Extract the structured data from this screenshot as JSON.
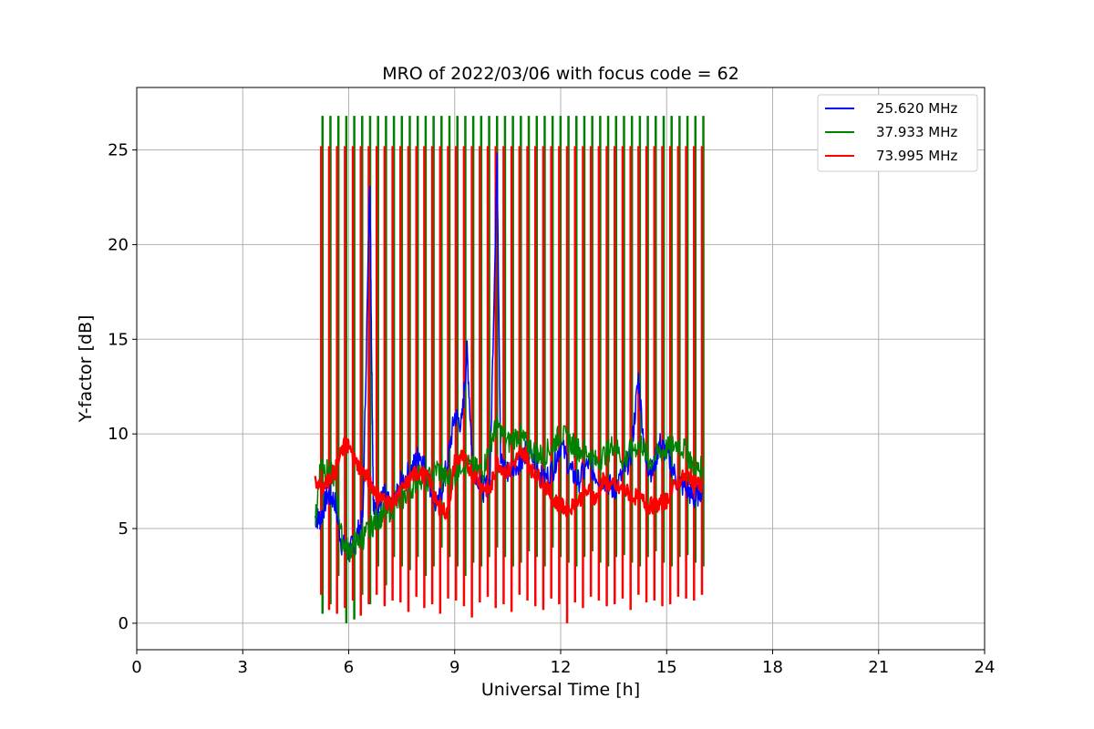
{
  "chart_data": {
    "type": "line",
    "title": "MRO of 2022/03/06 with focus code = 62",
    "xlabel": "Universal Time [h]",
    "ylabel": "Y-factor [dB]",
    "xlim": [
      0,
      24
    ],
    "ylim": [
      -1.4,
      28.3
    ],
    "x_ticks": [
      0,
      3,
      6,
      9,
      12,
      15,
      18,
      21,
      24
    ],
    "x_tick_labels": [
      "0",
      "3",
      "6",
      "9",
      "12",
      "15",
      "18",
      "21",
      "24"
    ],
    "y_ticks": [
      0,
      5,
      10,
      15,
      20,
      25
    ],
    "y_tick_labels": [
      "0",
      "5",
      "10",
      "15",
      "20",
      "25"
    ],
    "grid": true,
    "legend_position": "top-right",
    "series": [
      {
        "name": "25.620 MHz",
        "color": "#0000ff",
        "x": [
          5.05,
          5.2,
          5.4,
          5.6,
          5.8,
          6.0,
          6.2,
          6.4,
          6.6,
          6.65,
          6.7,
          6.8,
          7.0,
          7.2,
          7.5,
          7.8,
          8.0,
          8.2,
          8.5,
          8.8,
          9.0,
          9.2,
          9.35,
          9.5,
          9.8,
          10.0,
          10.2,
          10.3,
          10.5,
          10.8,
          11.0,
          11.3,
          11.5,
          11.8,
          12.0,
          12.3,
          12.5,
          12.8,
          13.0,
          13.3,
          13.5,
          13.8,
          14.0,
          14.2,
          14.4,
          14.6,
          14.8,
          15.0,
          15.3,
          15.6,
          15.8,
          16.0
        ],
        "y": [
          5.6,
          5.5,
          6.8,
          6.5,
          4.2,
          3.7,
          4.5,
          5.5,
          23.5,
          14.0,
          6.0,
          5.8,
          6.8,
          6.0,
          7.5,
          8.2,
          9.0,
          8.0,
          6.0,
          8.5,
          11.0,
          10.5,
          14.5,
          8.5,
          7.0,
          7.5,
          24.8,
          8.5,
          8.0,
          8.5,
          9.0,
          8.5,
          7.5,
          8.2,
          9.5,
          8.0,
          7.5,
          8.5,
          7.8,
          7.5,
          7.0,
          8.0,
          9.0,
          13.0,
          8.5,
          8.0,
          9.5,
          9.0,
          7.5,
          7.0,
          6.5,
          7.2
        ]
      },
      {
        "name": "37.933 MHz",
        "color": "#008000",
        "x": [
          5.05,
          5.2,
          5.4,
          5.6,
          5.8,
          6.0,
          6.2,
          6.4,
          6.6,
          6.8,
          7.0,
          7.2,
          7.5,
          7.8,
          8.0,
          8.2,
          8.5,
          8.8,
          9.0,
          9.2,
          9.5,
          9.8,
          10.0,
          10.2,
          10.5,
          10.8,
          11.0,
          11.3,
          11.5,
          11.8,
          12.0,
          12.3,
          12.5,
          12.8,
          13.0,
          13.3,
          13.5,
          13.8,
          14.0,
          14.3,
          14.5,
          14.8,
          15.0,
          15.3,
          15.6,
          15.8,
          16.0
        ],
        "y": [
          5.2,
          8.5,
          8.0,
          7.8,
          4.5,
          3.8,
          4.2,
          4.5,
          5.0,
          5.5,
          5.8,
          6.0,
          6.5,
          7.2,
          7.8,
          7.5,
          8.2,
          7.5,
          7.8,
          8.5,
          8.2,
          8.0,
          9.5,
          10.5,
          9.5,
          10.0,
          9.5,
          9.0,
          8.8,
          9.5,
          10.0,
          9.5,
          9.2,
          9.0,
          8.5,
          9.0,
          9.5,
          8.5,
          9.2,
          9.5,
          8.5,
          9.0,
          9.2,
          9.5,
          9.0,
          8.0,
          8.2
        ]
      },
      {
        "name": "73.995 MHz",
        "color": "#ff0000",
        "x": [
          5.05,
          5.3,
          5.6,
          5.9,
          6.0,
          6.2,
          6.4,
          6.6,
          6.8,
          7.0,
          7.2,
          7.5,
          7.8,
          8.0,
          8.3,
          8.5,
          8.8,
          9.0,
          9.2,
          9.5,
          9.8,
          10.0,
          10.2,
          10.5,
          10.8,
          11.0,
          11.2,
          11.5,
          11.8,
          12.0,
          12.2,
          12.5,
          12.8,
          13.0,
          13.2,
          13.5,
          13.8,
          14.0,
          14.3,
          14.5,
          14.8,
          15.0,
          15.3,
          15.6,
          15.8,
          16.0
        ],
        "y": [
          7.5,
          7.3,
          8.0,
          9.5,
          9.3,
          8.5,
          8.0,
          7.5,
          6.8,
          6.5,
          6.3,
          7.0,
          7.8,
          8.0,
          7.5,
          6.2,
          5.8,
          8.5,
          8.8,
          8.0,
          7.2,
          7.0,
          8.5,
          8.0,
          8.8,
          9.0,
          8.0,
          7.5,
          6.5,
          6.2,
          6.0,
          6.5,
          7.0,
          6.5,
          7.5,
          7.2,
          7.0,
          6.8,
          6.5,
          6.2,
          6.3,
          6.5,
          7.5,
          7.8,
          7.5,
          7.2
        ]
      }
    ],
    "calibration_spikes": {
      "start_h": 5.22,
      "end_h": 16.0,
      "count": 49,
      "red_top": 25.2,
      "green_top": 26.8,
      "red_low_values": [
        1.5,
        0.7,
        0.5,
        0.8,
        1.2,
        0.4,
        1.0,
        1.5,
        0.9,
        1.2,
        1.1,
        0.6,
        1.4,
        0.8,
        1.0,
        0.5,
        1.3,
        1.2,
        0.9,
        0.3,
        1.1,
        1.4,
        0.8,
        1.0,
        0.6,
        1.5,
        1.2,
        0.9,
        0.7,
        1.3,
        1.0,
        0.0,
        1.1,
        0.8,
        1.4,
        1.2,
        0.9,
        1.0,
        1.3,
        0.7,
        1.5,
        1.1,
        1.2,
        0.9,
        1.0,
        1.4,
        1.3,
        1.2,
        1.5
      ],
      "green_low_values": [
        0.5,
        1.0,
        2.5,
        0.0,
        0.2,
        1.5,
        1.0,
        3.0,
        2.0,
        3.5,
        3.0,
        2.8,
        3.5,
        2.5,
        3.0,
        4.0,
        3.5,
        3.0,
        2.5,
        3.2,
        3.0,
        3.5,
        4.0,
        3.5,
        3.0,
        3.2,
        3.8,
        3.5,
        3.0,
        4.0,
        3.5,
        3.2,
        3.0,
        3.5,
        3.8,
        3.2,
        3.0,
        3.5,
        3.6,
        3.2,
        3.0,
        3.5,
        3.8,
        3.2,
        3.0,
        3.5,
        3.6,
        3.2,
        3.0
      ]
    }
  }
}
